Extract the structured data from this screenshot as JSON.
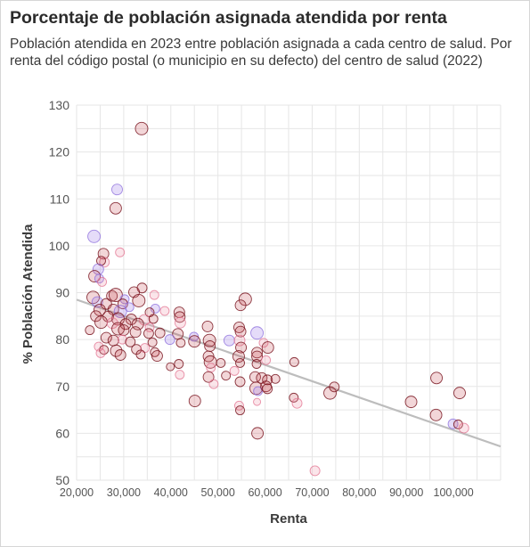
{
  "chart_data": {
    "type": "scatter",
    "title": "Porcentaje de población asignada atendida por renta",
    "subtitle": "Población atendida en 2023 entre población asignada a cada centro de salud. Por renta del código postal (o municipio en su defecto) del centro de salud (2022)",
    "xlabel": "Renta",
    "ylabel": "% Población Atendida",
    "xlim": [
      20000,
      110000
    ],
    "ylim": [
      50,
      130
    ],
    "xticks": [
      20000,
      30000,
      40000,
      50000,
      60000,
      70000,
      80000,
      90000,
      100000
    ],
    "xtick_labels": [
      "20,000",
      "30,000",
      "40,000",
      "50,000",
      "60,000",
      "70,000",
      "80,000",
      "90,000",
      "100,000"
    ],
    "yticks": [
      50,
      60,
      70,
      80,
      90,
      100,
      110,
      120,
      130
    ],
    "grid": true,
    "trendline": {
      "x": [
        20000,
        110000
      ],
      "y": [
        88.5,
        57.2
      ],
      "color": "#bdbdbd"
    },
    "colors": {
      "dark": "#a8323a",
      "pink": "#e58aa0",
      "purple": "#9d7fe0"
    },
    "points": [
      {
        "x": 33800,
        "y": 125,
        "r": 7,
        "c": "dark"
      },
      {
        "x": 28600,
        "y": 112,
        "r": 6,
        "c": "purple"
      },
      {
        "x": 28300,
        "y": 108,
        "r": 6.5,
        "c": "dark"
      },
      {
        "x": 23700,
        "y": 102,
        "r": 7,
        "c": "purple"
      },
      {
        "x": 29200,
        "y": 98.6,
        "r": 5,
        "c": "pink"
      },
      {
        "x": 25700,
        "y": 98.3,
        "r": 6,
        "c": "dark"
      },
      {
        "x": 25900,
        "y": 96.5,
        "r": 5.5,
        "c": "pink"
      },
      {
        "x": 25200,
        "y": 96.8,
        "r": 5,
        "c": "dark"
      },
      {
        "x": 24600,
        "y": 95,
        "r": 6,
        "c": "purple"
      },
      {
        "x": 23800,
        "y": 93.5,
        "r": 6.5,
        "c": "dark"
      },
      {
        "x": 24800,
        "y": 93,
        "r": 5,
        "c": "purple"
      },
      {
        "x": 25400,
        "y": 92.3,
        "r": 5,
        "c": "pink"
      },
      {
        "x": 33900,
        "y": 91,
        "r": 5.5,
        "c": "dark"
      },
      {
        "x": 32200,
        "y": 90.1,
        "r": 6,
        "c": "dark"
      },
      {
        "x": 36500,
        "y": 89.5,
        "r": 5,
        "c": "pink"
      },
      {
        "x": 23500,
        "y": 89,
        "r": 7,
        "c": "dark"
      },
      {
        "x": 27500,
        "y": 89.3,
        "r": 6,
        "c": "dark"
      },
      {
        "x": 28300,
        "y": 89.5,
        "r": 7.5,
        "c": "dark"
      },
      {
        "x": 30200,
        "y": 88.6,
        "r": 5,
        "c": "purple"
      },
      {
        "x": 55800,
        "y": 88.6,
        "r": 7,
        "c": "dark"
      },
      {
        "x": 33200,
        "y": 88.3,
        "r": 7,
        "c": "dark"
      },
      {
        "x": 24400,
        "y": 88,
        "r": 6,
        "c": "purple"
      },
      {
        "x": 26300,
        "y": 87.6,
        "r": 6,
        "c": "dark"
      },
      {
        "x": 29800,
        "y": 87.6,
        "r": 5.5,
        "c": "dark"
      },
      {
        "x": 54800,
        "y": 87.3,
        "r": 6,
        "c": "dark"
      },
      {
        "x": 31200,
        "y": 86.9,
        "r": 5,
        "c": "purple"
      },
      {
        "x": 36700,
        "y": 86.6,
        "r": 5,
        "c": "purple"
      },
      {
        "x": 38700,
        "y": 86.1,
        "r": 5,
        "c": "pink"
      },
      {
        "x": 24900,
        "y": 86.3,
        "r": 6.5,
        "c": "dark"
      },
      {
        "x": 27800,
        "y": 86.4,
        "r": 6,
        "c": "dark"
      },
      {
        "x": 29300,
        "y": 86,
        "r": 7,
        "c": "purple"
      },
      {
        "x": 35500,
        "y": 85.8,
        "r": 5,
        "c": "dark"
      },
      {
        "x": 41800,
        "y": 85.8,
        "r": 6,
        "c": "dark"
      },
      {
        "x": 41900,
        "y": 84.8,
        "r": 6,
        "c": "dark"
      },
      {
        "x": 24100,
        "y": 85,
        "r": 6,
        "c": "dark"
      },
      {
        "x": 26700,
        "y": 84.9,
        "r": 6,
        "c": "dark"
      },
      {
        "x": 28800,
        "y": 84.4,
        "r": 7,
        "c": "dark"
      },
      {
        "x": 31600,
        "y": 84.3,
        "r": 6,
        "c": "dark"
      },
      {
        "x": 34400,
        "y": 84.2,
        "r": 6,
        "c": "pink"
      },
      {
        "x": 36300,
        "y": 84.4,
        "r": 5,
        "c": "dark"
      },
      {
        "x": 25200,
        "y": 83.7,
        "r": 7,
        "c": "dark"
      },
      {
        "x": 27600,
        "y": 83.5,
        "r": 6,
        "c": "pink"
      },
      {
        "x": 30400,
        "y": 83.3,
        "r": 6,
        "c": "dark"
      },
      {
        "x": 33000,
        "y": 83.3,
        "r": 6.5,
        "c": "dark"
      },
      {
        "x": 35500,
        "y": 82.6,
        "r": 5,
        "c": "pink"
      },
      {
        "x": 42000,
        "y": 83.6,
        "r": 6,
        "c": "pink"
      },
      {
        "x": 47800,
        "y": 82.8,
        "r": 6,
        "c": "dark"
      },
      {
        "x": 54500,
        "y": 82.6,
        "r": 6,
        "c": "dark"
      },
      {
        "x": 54800,
        "y": 81.7,
        "r": 6,
        "c": "dark"
      },
      {
        "x": 58300,
        "y": 81.4,
        "r": 7,
        "c": "purple"
      },
      {
        "x": 22800,
        "y": 82,
        "r": 5,
        "c": "dark"
      },
      {
        "x": 28800,
        "y": 82.3,
        "r": 7,
        "c": "dark"
      },
      {
        "x": 30000,
        "y": 82,
        "r": 6,
        "c": "dark"
      },
      {
        "x": 32500,
        "y": 81.6,
        "r": 6,
        "c": "dark"
      },
      {
        "x": 35300,
        "y": 81.3,
        "r": 5.5,
        "c": "dark"
      },
      {
        "x": 37700,
        "y": 81.4,
        "r": 5.5,
        "c": "dark"
      },
      {
        "x": 41500,
        "y": 81.2,
        "r": 6,
        "c": "dark"
      },
      {
        "x": 44900,
        "y": 80.6,
        "r": 5,
        "c": "purple"
      },
      {
        "x": 45000,
        "y": 79.6,
        "r": 6.5,
        "c": "dark"
      },
      {
        "x": 48200,
        "y": 79.8,
        "r": 7,
        "c": "dark"
      },
      {
        "x": 52400,
        "y": 79.8,
        "r": 6,
        "c": "purple"
      },
      {
        "x": 54600,
        "y": 79.8,
        "r": 6,
        "c": "pink"
      },
      {
        "x": 59700,
        "y": 79.3,
        "r": 5,
        "c": "pink"
      },
      {
        "x": 26300,
        "y": 80.4,
        "r": 6,
        "c": "dark"
      },
      {
        "x": 27800,
        "y": 79.8,
        "r": 6,
        "c": "dark"
      },
      {
        "x": 29700,
        "y": 80,
        "r": 5,
        "c": "pink"
      },
      {
        "x": 31400,
        "y": 79.5,
        "r": 5.5,
        "c": "dark"
      },
      {
        "x": 36100,
        "y": 79.4,
        "r": 5,
        "c": "dark"
      },
      {
        "x": 39800,
        "y": 80,
        "r": 5.5,
        "c": "purple"
      },
      {
        "x": 42100,
        "y": 79.3,
        "r": 5,
        "c": "dark"
      },
      {
        "x": 48300,
        "y": 78.6,
        "r": 6,
        "c": "dark"
      },
      {
        "x": 54900,
        "y": 78.3,
        "r": 6,
        "c": "dark"
      },
      {
        "x": 60600,
        "y": 78.3,
        "r": 6.5,
        "c": "dark"
      },
      {
        "x": 24700,
        "y": 78.5,
        "r": 5,
        "c": "pink"
      },
      {
        "x": 25800,
        "y": 77.8,
        "r": 5,
        "c": "dark"
      },
      {
        "x": 28400,
        "y": 77.6,
        "r": 6.5,
        "c": "dark"
      },
      {
        "x": 32700,
        "y": 77.9,
        "r": 5.5,
        "c": "dark"
      },
      {
        "x": 34500,
        "y": 78.2,
        "r": 5,
        "c": "pink"
      },
      {
        "x": 36600,
        "y": 77.3,
        "r": 5,
        "c": "dark"
      },
      {
        "x": 25100,
        "y": 77.1,
        "r": 5,
        "c": "pink"
      },
      {
        "x": 29300,
        "y": 76.7,
        "r": 6,
        "c": "dark"
      },
      {
        "x": 33600,
        "y": 76.8,
        "r": 5,
        "c": "dark"
      },
      {
        "x": 37100,
        "y": 76.5,
        "r": 6,
        "c": "dark"
      },
      {
        "x": 48000,
        "y": 76.4,
        "r": 6,
        "c": "dark"
      },
      {
        "x": 54400,
        "y": 76.4,
        "r": 6.5,
        "c": "dark"
      },
      {
        "x": 58300,
        "y": 77.2,
        "r": 6,
        "c": "dark"
      },
      {
        "x": 58300,
        "y": 76.4,
        "r": 6,
        "c": "dark"
      },
      {
        "x": 60200,
        "y": 75.6,
        "r": 5,
        "c": "pink"
      },
      {
        "x": 48400,
        "y": 75.2,
        "r": 7,
        "c": "dark"
      },
      {
        "x": 50600,
        "y": 75,
        "r": 5,
        "c": "dark"
      },
      {
        "x": 54700,
        "y": 75,
        "r": 5,
        "c": "dark"
      },
      {
        "x": 58200,
        "y": 74.8,
        "r": 5,
        "c": "dark"
      },
      {
        "x": 66200,
        "y": 75.2,
        "r": 5,
        "c": "dark"
      },
      {
        "x": 39900,
        "y": 74.2,
        "r": 4.5,
        "c": "dark"
      },
      {
        "x": 41700,
        "y": 74.8,
        "r": 5,
        "c": "dark"
      },
      {
        "x": 48500,
        "y": 74,
        "r": 5,
        "c": "pink"
      },
      {
        "x": 41900,
        "y": 72.5,
        "r": 5,
        "c": "pink"
      },
      {
        "x": 48000,
        "y": 72,
        "r": 6,
        "c": "dark"
      },
      {
        "x": 51700,
        "y": 72.3,
        "r": 5,
        "c": "dark"
      },
      {
        "x": 53500,
        "y": 73.3,
        "r": 5,
        "c": "pink"
      },
      {
        "x": 57900,
        "y": 72,
        "r": 6,
        "c": "dark"
      },
      {
        "x": 59300,
        "y": 71.8,
        "r": 6,
        "c": "dark"
      },
      {
        "x": 60500,
        "y": 71.4,
        "r": 5.5,
        "c": "dark"
      },
      {
        "x": 62200,
        "y": 71.6,
        "r": 5,
        "c": "dark"
      },
      {
        "x": 49100,
        "y": 70.5,
        "r": 5,
        "c": "pink"
      },
      {
        "x": 54700,
        "y": 71,
        "r": 5.5,
        "c": "dark"
      },
      {
        "x": 58100,
        "y": 69.6,
        "r": 7,
        "c": "dark"
      },
      {
        "x": 58500,
        "y": 69,
        "r": 5,
        "c": "purple"
      },
      {
        "x": 60200,
        "y": 70,
        "r": 6,
        "c": "dark"
      },
      {
        "x": 60500,
        "y": 69.5,
        "r": 5.5,
        "c": "dark"
      },
      {
        "x": 73800,
        "y": 68.6,
        "r": 7,
        "c": "dark"
      },
      {
        "x": 74700,
        "y": 69.9,
        "r": 5.5,
        "c": "dark"
      },
      {
        "x": 66100,
        "y": 67.6,
        "r": 5,
        "c": "dark"
      },
      {
        "x": 58300,
        "y": 66.7,
        "r": 4,
        "c": "pink"
      },
      {
        "x": 66800,
        "y": 66.4,
        "r": 5.5,
        "c": "pink"
      },
      {
        "x": 45100,
        "y": 66.9,
        "r": 6.5,
        "c": "dark"
      },
      {
        "x": 54500,
        "y": 65.9,
        "r": 5,
        "c": "pink"
      },
      {
        "x": 54700,
        "y": 64.9,
        "r": 5,
        "c": "dark"
      },
      {
        "x": 91000,
        "y": 66.7,
        "r": 6.5,
        "c": "dark"
      },
      {
        "x": 96400,
        "y": 71.8,
        "r": 6.5,
        "c": "dark"
      },
      {
        "x": 101300,
        "y": 68.6,
        "r": 6.5,
        "c": "dark"
      },
      {
        "x": 96300,
        "y": 63.9,
        "r": 6.5,
        "c": "dark"
      },
      {
        "x": 99900,
        "y": 62,
        "r": 5.5,
        "c": "purple"
      },
      {
        "x": 101000,
        "y": 61.9,
        "r": 5,
        "c": "dark"
      },
      {
        "x": 102200,
        "y": 61.1,
        "r": 5.5,
        "c": "pink"
      },
      {
        "x": 58400,
        "y": 60,
        "r": 6.5,
        "c": "dark"
      },
      {
        "x": 70600,
        "y": 52,
        "r": 5.5,
        "c": "pink"
      }
    ]
  }
}
